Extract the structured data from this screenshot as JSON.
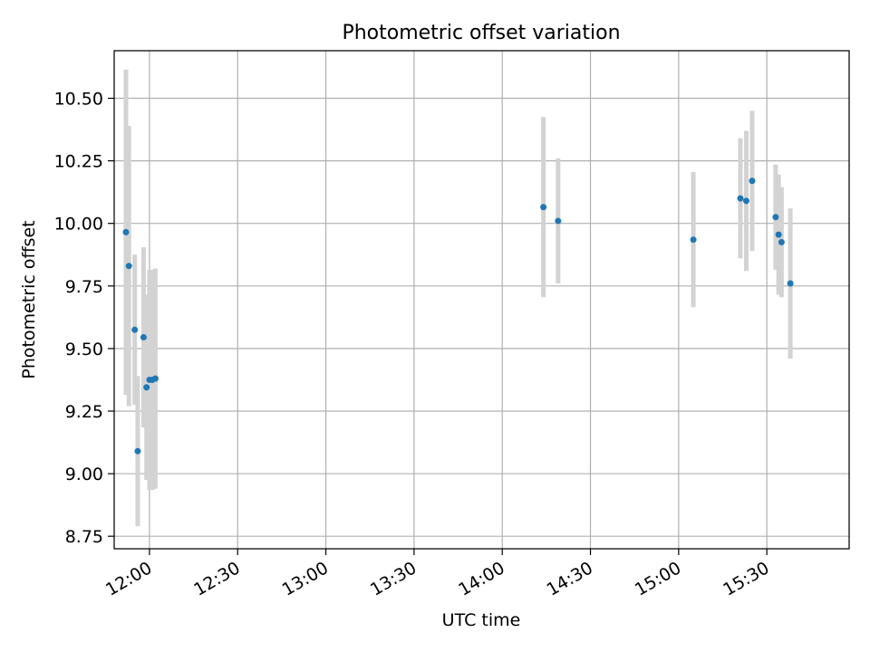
{
  "chart_data": {
    "type": "scatter",
    "title": "Photometric offset variation",
    "xlabel": "UTC time",
    "ylabel": "Photometric offset",
    "x_axis_type": "time",
    "xlim": [
      "11:48",
      "15:58"
    ],
    "ylim": [
      8.7,
      10.69
    ],
    "x_ticks": [
      "12:00",
      "12:30",
      "13:00",
      "13:30",
      "14:00",
      "14:30",
      "15:00",
      "15:30"
    ],
    "y_ticks": [
      "8.75",
      "9.00",
      "9.25",
      "9.50",
      "9.75",
      "10.00",
      "10.25",
      "10.50"
    ],
    "grid": true,
    "legend": "none",
    "colors": {
      "points": "#1f77b4",
      "error_bars": "#d3d3d3",
      "grid": "#b0b0b0"
    },
    "series": [
      {
        "points": [
          {
            "x": "11:52",
            "y": 9.965,
            "err": 0.65
          },
          {
            "x": "11:53",
            "y": 9.83,
            "err": 0.56
          },
          {
            "x": "11:55",
            "y": 9.575,
            "err": 0.3
          },
          {
            "x": "11:56",
            "y": 9.09,
            "err": 0.3
          },
          {
            "x": "11:58",
            "y": 9.545,
            "err": 0.36
          },
          {
            "x": "11:59",
            "y": 9.345,
            "err": 0.37
          },
          {
            "x": "12:00",
            "y": 9.375,
            "err": 0.44
          },
          {
            "x": "12:01",
            "y": 9.375,
            "err": 0.44
          },
          {
            "x": "12:02",
            "y": 9.38,
            "err": 0.44
          },
          {
            "x": "14:14",
            "y": 10.065,
            "err": 0.36
          },
          {
            "x": "14:19",
            "y": 10.01,
            "err": 0.25
          },
          {
            "x": "15:05",
            "y": 9.935,
            "err": 0.27
          },
          {
            "x": "15:21",
            "y": 10.1,
            "err": 0.24
          },
          {
            "x": "15:23",
            "y": 10.09,
            "err": 0.28
          },
          {
            "x": "15:25",
            "y": 10.17,
            "err": 0.28
          },
          {
            "x": "15:33",
            "y": 10.025,
            "err": 0.21
          },
          {
            "x": "15:34",
            "y": 9.955,
            "err": 0.24
          },
          {
            "x": "15:35",
            "y": 9.925,
            "err": 0.22
          },
          {
            "x": "15:38",
            "y": 9.76,
            "err": 0.3
          }
        ]
      }
    ]
  }
}
